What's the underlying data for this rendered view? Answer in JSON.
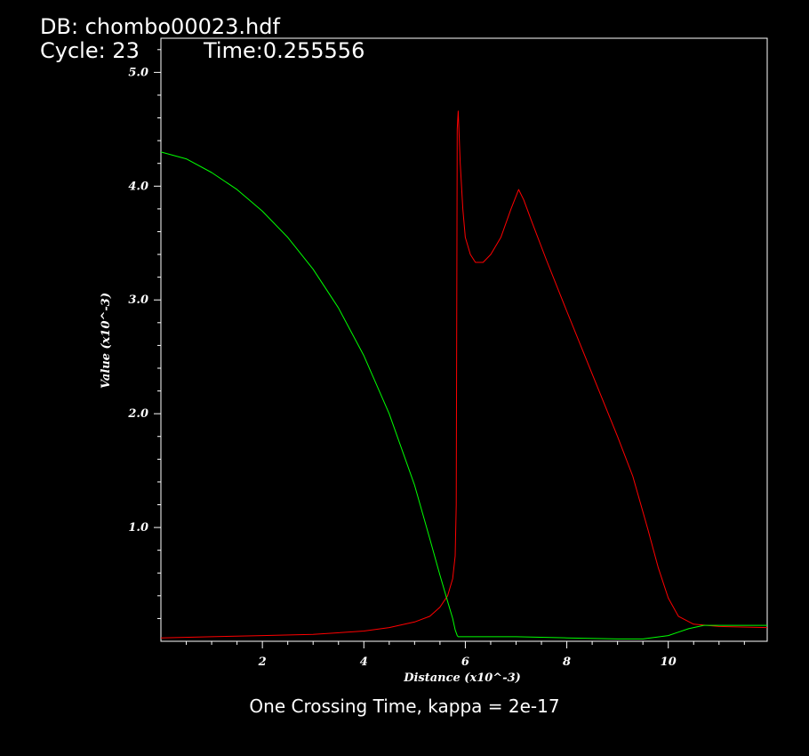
{
  "header": {
    "db_line": "DB: chombo00023.hdf",
    "cycle_line": "Cycle: 23",
    "time_line": "Time:0.255556"
  },
  "caption": "One Crossing Time, kappa = 2e-17",
  "colors": {
    "background": "#000000",
    "axes": "#ffffff",
    "red_series": "#ff0000",
    "green_series": "#00ff00"
  },
  "chart_data": {
    "type": "line",
    "xlabel": "Distance (x10^-3)",
    "ylabel": "Value (x10^-3)",
    "xlim": [
      0,
      11.95
    ],
    "ylim": [
      0.0,
      5.3
    ],
    "xticks": [
      2,
      4,
      6,
      8,
      10
    ],
    "xtick_labels": [
      "2",
      "4",
      "6",
      "8",
      "10"
    ],
    "yticks": [
      1.0,
      2.0,
      3.0,
      4.0,
      5.0
    ],
    "ytick_labels": [
      "1.0",
      "2.0",
      "3.0",
      "4.0",
      "5.0"
    ],
    "grid": false,
    "series": [
      {
        "color": "#ff0000",
        "x": [
          0,
          1,
          2,
          3,
          4,
          4.5,
          5,
          5.3,
          5.5,
          5.65,
          5.75,
          5.8,
          5.82,
          5.84,
          5.86,
          5.9,
          5.95,
          6.0,
          6.1,
          6.2,
          6.35,
          6.5,
          6.7,
          6.9,
          7.05,
          7.15,
          7.3,
          7.6,
          8.0,
          8.5,
          9.0,
          9.3,
          9.6,
          9.8,
          10.0,
          10.2,
          10.5,
          11.0,
          11.95
        ],
        "y": [
          0.03,
          0.04,
          0.05,
          0.06,
          0.09,
          0.12,
          0.17,
          0.22,
          0.3,
          0.4,
          0.55,
          0.75,
          1.2,
          4.5,
          4.66,
          4.2,
          3.8,
          3.55,
          3.4,
          3.33,
          3.33,
          3.4,
          3.55,
          3.8,
          3.97,
          3.88,
          3.7,
          3.35,
          2.9,
          2.35,
          1.8,
          1.45,
          0.98,
          0.65,
          0.38,
          0.22,
          0.15,
          0.13,
          0.12
        ]
      },
      {
        "color": "#00ff00",
        "x": [
          0,
          0.5,
          1,
          1.5,
          2,
          2.5,
          3,
          3.5,
          4,
          4.5,
          5,
          5.3,
          5.5,
          5.65,
          5.75,
          5.8,
          5.84,
          5.86,
          5.9,
          6.5,
          7,
          8,
          9,
          9.5,
          10,
          10.4,
          10.7,
          11.2,
          11.95
        ],
        "y": [
          4.3,
          4.24,
          4.12,
          3.97,
          3.78,
          3.55,
          3.27,
          2.93,
          2.51,
          2.0,
          1.37,
          0.9,
          0.58,
          0.35,
          0.2,
          0.1,
          0.05,
          0.04,
          0.04,
          0.04,
          0.04,
          0.03,
          0.02,
          0.02,
          0.05,
          0.11,
          0.14,
          0.14,
          0.14
        ]
      }
    ]
  }
}
